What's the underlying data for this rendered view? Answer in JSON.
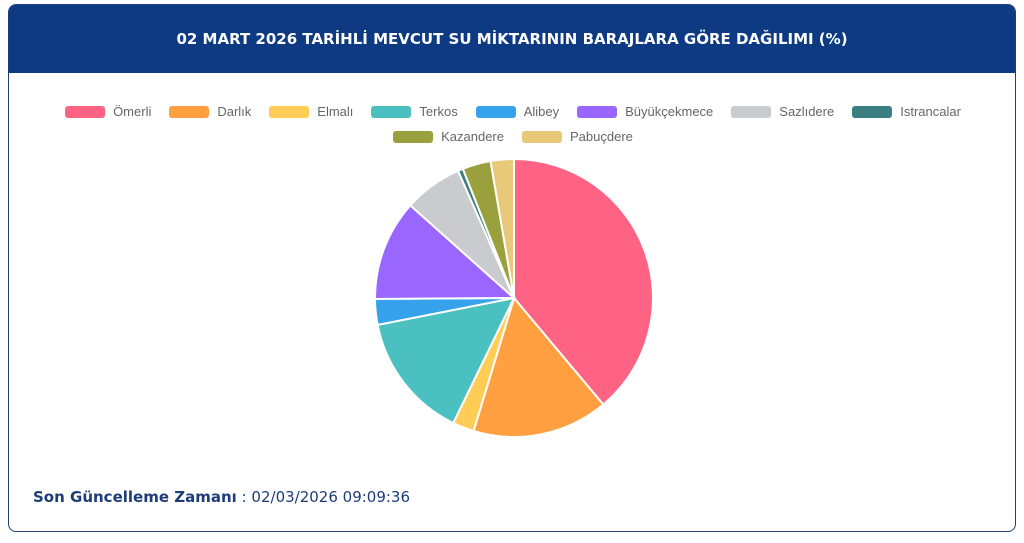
{
  "chart_data": {
    "type": "pie",
    "title": "02 MART 2026 TARİHLİ MEVCUT SU MİKTARININ BARAJLARA GÖRE DAĞILIMI (%)",
    "categories": [
      "Ömerli",
      "Darlık",
      "Elmalı",
      "Terkos",
      "Alibey",
      "Büyükçekmece",
      "Sazlıdere",
      "Istrancalar",
      "Kazandere",
      "Pabuçdere"
    ],
    "values": [
      38.9,
      15.8,
      2.5,
      14.7,
      3.0,
      11.7,
      6.8,
      0.6,
      3.3,
      2.7
    ],
    "colors": [
      "#ff6384",
      "#ff9f40",
      "#ffcd56",
      "#4bc0c0",
      "#36a2eb",
      "#9966ff",
      "#c9cbcf",
      "#3b7f82",
      "#9aa03b",
      "#e8c97a"
    ],
    "legend": "top"
  },
  "footer": {
    "label": "Son Güncelleme Zamanı",
    "separator": ":",
    "value": "02/03/2026 09:09:36"
  }
}
